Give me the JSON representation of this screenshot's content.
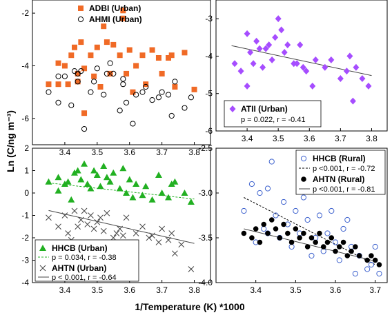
{
  "figure": {
    "ylabel": "Ln (C/ng m⁻³)",
    "xlabel": "1/Temperature (K) *1000"
  },
  "colors": {
    "orange": "#f06a26",
    "purple": "#a64dff",
    "green": "#22b022",
    "blue": "#3a5fcd",
    "black": "#000000",
    "grey": "#444444"
  },
  "chart_data": [
    {
      "type": "scatter",
      "panel": "top-left",
      "xlim": [
        3.3,
        3.85
      ],
      "ylim": [
        -7,
        -1.5
      ],
      "xticks": [
        "3.4",
        "3.5",
        "3.6",
        "3.7",
        "3.8"
      ],
      "yticks": [
        "-2",
        "-4",
        "-6"
      ],
      "ytick_values": [
        -2,
        -4,
        -6
      ],
      "show_xticklabels": true,
      "yaxis_side": "left",
      "legend": {
        "position": "top",
        "entries": [
          {
            "label": "ADBI (Urban)",
            "marker": "square",
            "color": "#f06a26"
          },
          {
            "label": "AHMI (Urban)",
            "marker": "circle-open",
            "color": "#000000"
          }
        ]
      },
      "series": [
        {
          "name": "ADBI (Urban)",
          "marker": "square",
          "color": "#f06a26",
          "x": [
            3.35,
            3.38,
            3.38,
            3.4,
            3.41,
            3.42,
            3.43,
            3.44,
            3.44,
            3.45,
            3.46,
            3.46,
            3.48,
            3.49,
            3.5,
            3.51,
            3.52,
            3.53,
            3.54,
            3.55,
            3.57,
            3.58,
            3.58,
            3.59,
            3.6,
            3.61,
            3.62,
            3.64,
            3.65,
            3.67,
            3.69,
            3.7,
            3.72,
            3.73,
            3.74,
            3.77,
            3.8
          ],
          "y": [
            -4.7,
            -4.7,
            -3.9,
            -4.0,
            -4.7,
            -3.6,
            -3.3,
            -4.3,
            -4.6,
            -3.1,
            -4.1,
            -5.8,
            -3.6,
            -4.4,
            -3.3,
            -4.8,
            -2.5,
            -3.1,
            -4.3,
            -3.2,
            -3.6,
            -1.9,
            -2.2,
            -4.3,
            -3.4,
            -5.0,
            -4.0,
            -3.6,
            -4.7,
            -3.4,
            -3.7,
            -4.3,
            -3.7,
            -3.6,
            -4.8,
            -3.5,
            -4.9
          ]
        },
        {
          "name": "AHMI (Urban)",
          "marker": "circle-open",
          "color": "#000000",
          "x": [
            3.35,
            3.38,
            3.38,
            3.4,
            3.42,
            3.43,
            3.44,
            3.44,
            3.45,
            3.46,
            3.48,
            3.49,
            3.5,
            3.52,
            3.53,
            3.54,
            3.55,
            3.57,
            3.58,
            3.58,
            3.59,
            3.61,
            3.62,
            3.64,
            3.65,
            3.67,
            3.69,
            3.7,
            3.72,
            3.73,
            3.74,
            3.77,
            3.79
          ],
          "y": [
            -5.0,
            -5.4,
            -4.4,
            -4.4,
            -5.5,
            -4.2,
            -4.3,
            -4.6,
            -4.2,
            -6.4,
            -5.0,
            -4.6,
            -4.1,
            -5.1,
            -4.3,
            -3.9,
            -4.3,
            -5.7,
            -4.5,
            -4.7,
            -5.4,
            -6.2,
            -5.1,
            -5.0,
            -4.8,
            -5.3,
            -5.2,
            -5.0,
            -5.1,
            -5.9,
            -4.6,
            -5.6,
            -5.2
          ]
        }
      ]
    },
    {
      "type": "scatter",
      "panel": "top-right",
      "xlim": [
        3.3,
        3.85
      ],
      "ylim": [
        -6,
        -2.5
      ],
      "xticks": [
        "3.4",
        "3.5",
        "3.6",
        "3.7",
        "3.8"
      ],
      "yticks": [
        "-3",
        "-4",
        "-5",
        "-6"
      ],
      "ytick_values": [
        -3,
        -4,
        -5,
        -6
      ],
      "show_xticklabels": true,
      "yaxis_side": "left",
      "legend": {
        "position": "bottom-right",
        "entries": [
          {
            "label": "ATII (Urban)",
            "marker": "diamond",
            "color": "#a64dff",
            "stat": {
              "p": "p = 0.022",
              "r": "r = -0.41"
            }
          }
        ]
      },
      "series": [
        {
          "name": "ATII (Urban)",
          "marker": "diamond",
          "color": "#a64dff",
          "x": [
            3.36,
            3.38,
            3.4,
            3.4,
            3.41,
            3.42,
            3.43,
            3.44,
            3.45,
            3.46,
            3.47,
            3.48,
            3.49,
            3.5,
            3.51,
            3.52,
            3.53,
            3.55,
            3.56,
            3.57,
            3.58,
            3.59,
            3.61,
            3.62,
            3.65,
            3.67,
            3.7,
            3.72,
            3.73,
            3.74,
            3.75,
            3.77,
            3.79
          ],
          "y": [
            -4.2,
            -4.4,
            -3.4,
            -4.8,
            -3.9,
            -4.2,
            -3.6,
            -3.8,
            -4.3,
            -3.8,
            -3.7,
            -4.1,
            -3.5,
            -3.0,
            -3.3,
            -3.9,
            -3.7,
            -4.2,
            -4.2,
            -3.7,
            -4.3,
            -4.4,
            -4.8,
            -4.1,
            -4.3,
            -4.1,
            -4.6,
            -4.4,
            -4.0,
            -5.2,
            -4.3,
            -4.6,
            -4.8
          ]
        }
      ],
      "trendlines": [
        {
          "series": "ATII (Urban)",
          "x": [
            3.35,
            3.8
          ],
          "y": [
            -3.72,
            -4.52
          ],
          "style": "solid",
          "color": "#444444"
        }
      ]
    },
    {
      "type": "scatter",
      "panel": "bottom-left",
      "xlim": [
        3.3,
        3.85
      ],
      "ylim": [
        -4,
        2
      ],
      "xticks": [
        "3.4",
        "3.5",
        "3.6",
        "3.7",
        "3.8"
      ],
      "yticks": [
        "2",
        "1",
        "0",
        "-1",
        "-2",
        "-3",
        "-4"
      ],
      "ytick_values": [
        2,
        1,
        0,
        -1,
        -2,
        -3,
        -4
      ],
      "show_xticklabels": true,
      "yaxis_side": "left",
      "legend": {
        "position": "bottom-left",
        "entries": [
          {
            "label": "HHCB (Urban)",
            "marker": "triangle",
            "color": "#22b022",
            "stat": {
              "p": "p = 0.034",
              "r": "r = -0.38"
            },
            "line": "dashed"
          },
          {
            "label": "AHTN (Urban)",
            "marker": "cross",
            "color": "#444444",
            "stat": {
              "p": "p < 0.001",
              "r": "r = -0.64"
            },
            "line": "solid"
          }
        ]
      },
      "series": [
        {
          "name": "HHCB (Urban)",
          "marker": "triangle",
          "color": "#22b022",
          "x": [
            3.35,
            3.38,
            3.38,
            3.4,
            3.41,
            3.42,
            3.43,
            3.44,
            3.45,
            3.46,
            3.47,
            3.48,
            3.49,
            3.5,
            3.51,
            3.52,
            3.53,
            3.54,
            3.55,
            3.57,
            3.58,
            3.59,
            3.6,
            3.61,
            3.62,
            3.64,
            3.65,
            3.67,
            3.69,
            3.7,
            3.72,
            3.73,
            3.74,
            3.77,
            3.79
          ],
          "y": [
            0.5,
            0.7,
            0.1,
            0.4,
            0.5,
            -0.3,
            0.9,
            1.0,
            0.6,
            1.3,
            0.4,
            0.2,
            1.0,
            0.8,
            0.3,
            1.2,
            0.7,
            0.5,
            0.9,
            0.2,
            1.1,
            0.0,
            0.6,
            -0.2,
            0.4,
            -0.1,
            0.3,
            -0.3,
            0.8,
            0.0,
            -0.2,
            0.4,
            0.5,
            0.0,
            -0.4
          ]
        },
        {
          "name": "AHTN (Urban)",
          "marker": "cross",
          "color": "#444444",
          "x": [
            3.35,
            3.38,
            3.38,
            3.4,
            3.41,
            3.42,
            3.43,
            3.44,
            3.45,
            3.46,
            3.47,
            3.48,
            3.49,
            3.5,
            3.51,
            3.52,
            3.53,
            3.55,
            3.56,
            3.57,
            3.58,
            3.59,
            3.61,
            3.62,
            3.64,
            3.66,
            3.67,
            3.69,
            3.7,
            3.72,
            3.73,
            3.74,
            3.76,
            3.79
          ],
          "y": [
            -1.1,
            -1.5,
            -2.3,
            -1.0,
            -1.8,
            -2.1,
            -0.8,
            -1.5,
            -1.2,
            -0.8,
            -1.4,
            -1.0,
            -1.6,
            -1.3,
            -1.1,
            -1.7,
            -0.9,
            -2.0,
            -1.8,
            -1.6,
            -1.9,
            -1.1,
            -2.4,
            -1.8,
            -1.5,
            -2.0,
            -1.9,
            -2.2,
            -1.6,
            -2.1,
            -1.8,
            -2.7,
            -2.3,
            -3.4
          ]
        }
      ],
      "trendlines": [
        {
          "series": "HHCB (Urban)",
          "x": [
            3.35,
            3.8
          ],
          "y": [
            0.45,
            -0.27
          ],
          "style": "dashed",
          "color": "#22b022"
        },
        {
          "series": "AHTN (Urban)",
          "x": [
            3.35,
            3.8
          ],
          "y": [
            -0.78,
            -2.25
          ],
          "style": "solid",
          "color": "#444444"
        }
      ]
    },
    {
      "type": "scatter",
      "panel": "bottom-right",
      "xlim": [
        3.3,
        3.73
      ],
      "ylim": [
        -4,
        -2.5
      ],
      "xticks": [
        "3.4",
        "3.5",
        "3.6",
        "3.7"
      ],
      "yticks": [
        "-2.5",
        "-3.0",
        "-3.5",
        "-4.0"
      ],
      "ytick_values": [
        -2.5,
        -3.0,
        -3.5,
        -4.0
      ],
      "show_xticklabels": true,
      "yaxis_side": "left",
      "legend": {
        "position": "top-right",
        "entries": [
          {
            "label": "HHCB (Rural)",
            "marker": "circle-open",
            "color": "#3a5fcd",
            "stat": {
              "p": "p <0.001",
              "r": "r = -0.72"
            },
            "line": "dashed"
          },
          {
            "label": "AHTN (Rural)",
            "marker": "circle-filled",
            "color": "#000000",
            "stat": {
              "p": "p <0.001",
              "r": "r = -0.81"
            },
            "line": "solid"
          }
        ]
      },
      "series": [
        {
          "name": "HHCB (Rural)",
          "marker": "circle-open",
          "color": "#3a5fcd",
          "x": [
            3.37,
            3.39,
            3.4,
            3.41,
            3.42,
            3.43,
            3.43,
            3.44,
            3.45,
            3.46,
            3.47,
            3.48,
            3.49,
            3.5,
            3.51,
            3.52,
            3.53,
            3.54,
            3.55,
            3.56,
            3.57,
            3.58,
            3.59,
            3.6,
            3.61,
            3.62,
            3.63,
            3.64,
            3.65,
            3.66,
            3.68,
            3.69,
            3.7,
            3.71
          ],
          "y": [
            -3.2,
            -2.9,
            -3.55,
            -3.0,
            -3.4,
            -2.95,
            -3.45,
            -2.65,
            -3.25,
            -3.5,
            -3.1,
            -3.35,
            -3.6,
            -3.2,
            -3.45,
            -3.05,
            -3.3,
            -3.7,
            -3.5,
            -3.25,
            -3.65,
            -3.45,
            -3.2,
            -3.55,
            -3.75,
            -3.4,
            -3.3,
            -3.6,
            -3.9,
            -3.7,
            -3.85,
            -3.8,
            -3.6,
            -3.9
          ]
        },
        {
          "name": "AHTN (Rural)",
          "marker": "circle-filled",
          "color": "#000000",
          "x": [
            3.37,
            3.39,
            3.4,
            3.41,
            3.42,
            3.43,
            3.44,
            3.45,
            3.46,
            3.47,
            3.48,
            3.49,
            3.5,
            3.51,
            3.52,
            3.53,
            3.54,
            3.55,
            3.56,
            3.57,
            3.58,
            3.59,
            3.6,
            3.61,
            3.62,
            3.63,
            3.64,
            3.65,
            3.66,
            3.68,
            3.69,
            3.7,
            3.71
          ],
          "y": [
            -3.45,
            -3.5,
            -3.4,
            -3.55,
            -3.35,
            -3.45,
            -3.3,
            -3.4,
            -3.5,
            -3.35,
            -3.45,
            -3.55,
            -3.4,
            -3.5,
            -3.45,
            -3.6,
            -3.5,
            -3.55,
            -3.45,
            -3.6,
            -3.55,
            -3.5,
            -3.65,
            -3.6,
            -3.55,
            -3.7,
            -3.65,
            -3.6,
            -3.7,
            -3.75,
            -3.7,
            -3.75,
            -3.8
          ]
        }
      ],
      "trendlines": [
        {
          "series": "HHCB (Rural)",
          "x": [
            3.37,
            3.7
          ],
          "y": [
            -3.05,
            -3.8
          ],
          "style": "dashed",
          "color": "#000000"
        },
        {
          "series": "AHTN (Rural)",
          "x": [
            3.37,
            3.7
          ],
          "y": [
            -3.4,
            -3.76
          ],
          "style": "solid",
          "color": "#444444"
        }
      ]
    }
  ]
}
